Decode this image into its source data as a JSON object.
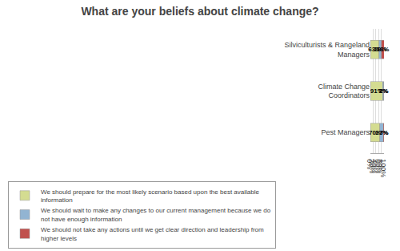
{
  "chart_data": {
    "type": "bar",
    "orientation": "horizontal",
    "stacked": true,
    "title": "What are your beliefs about climate change?",
    "categories": [
      "Silviculturists & Rangeland\nManagers",
      "Climate Change\nCoordinators",
      "Pest Managers"
    ],
    "series": [
      {
        "name": "We should prepare for the most likely scenario based upon the best available\ninformation",
        "color": "#d4dc91",
        "values": [
          63,
          91,
          70
        ],
        "value_labels": [
          "63%",
          "91%",
          "70%"
        ]
      },
      {
        "name": "We should wait to make any changes to our current management because we do\nnot have enough information",
        "color": "#92b4d2",
        "values": [
          19,
          7,
          27
        ],
        "value_labels": [
          "19%",
          "7%",
          "27%"
        ]
      },
      {
        "name": "We should not take any actions until we get clear direction and leadership from\nhigher levels",
        "color": "#c0504d",
        "values": [
          18,
          2,
          3
        ],
        "value_labels": [
          "18%",
          "2%",
          "3%"
        ]
      }
    ],
    "xlim": [
      0,
      100
    ],
    "xticks": [
      {
        "value": 0,
        "label": "0%"
      },
      {
        "value": 20,
        "label": "20%"
      },
      {
        "value": 40,
        "label": "40%"
      },
      {
        "value": 60,
        "label": "60%"
      },
      {
        "value": 80,
        "label": "80%"
      },
      {
        "value": 100,
        "label": "100%"
      }
    ],
    "grid": true,
    "data_labels": true,
    "legend": "bottom"
  }
}
